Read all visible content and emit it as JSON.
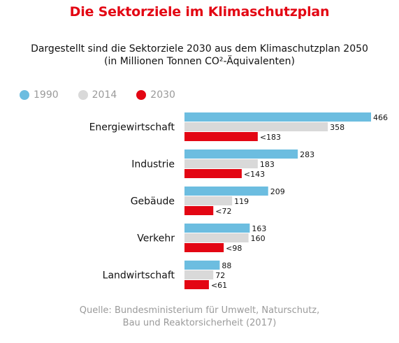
{
  "chart_data": {
    "type": "bar",
    "orientation": "horizontal",
    "title": "Die Sektorziele im Klimaschutzplan",
    "subtitle_line1": "Dargestellt sind die Sektorziele 2030 aus dem Klimaschutzplan 2050",
    "subtitle_line2": "(in Millionen Tonnen CO²-Äquivalenten)",
    "categories": [
      "Energiewirtschaft",
      "Industrie",
      "Gebäude",
      "Verkehr",
      "Landwirtschaft"
    ],
    "series": [
      {
        "name": "1990",
        "color": "#6cbde0",
        "values": [
          466,
          283,
          209,
          163,
          88
        ],
        "labels": [
          "466",
          "283",
          "209",
          "163",
          "88"
        ]
      },
      {
        "name": "2014",
        "color": "#d9d9d9",
        "values": [
          358,
          183,
          119,
          160,
          72
        ],
        "labels": [
          "358",
          "183",
          "119",
          "160",
          "72"
        ]
      },
      {
        "name": "2030",
        "color": "#e30613",
        "values": [
          183,
          143,
          72,
          98,
          61
        ],
        "labels": [
          "<183",
          "<143",
          "<72",
          "<98",
          "<61"
        ]
      }
    ],
    "xlim": [
      0,
      466
    ],
    "grid": false,
    "legend_position": "top-left",
    "source_line1": "Quelle: Bundesministerium für Umwelt, Naturschutz,",
    "source_line2": "Bau und Reaktorsicherheit (2017)"
  }
}
